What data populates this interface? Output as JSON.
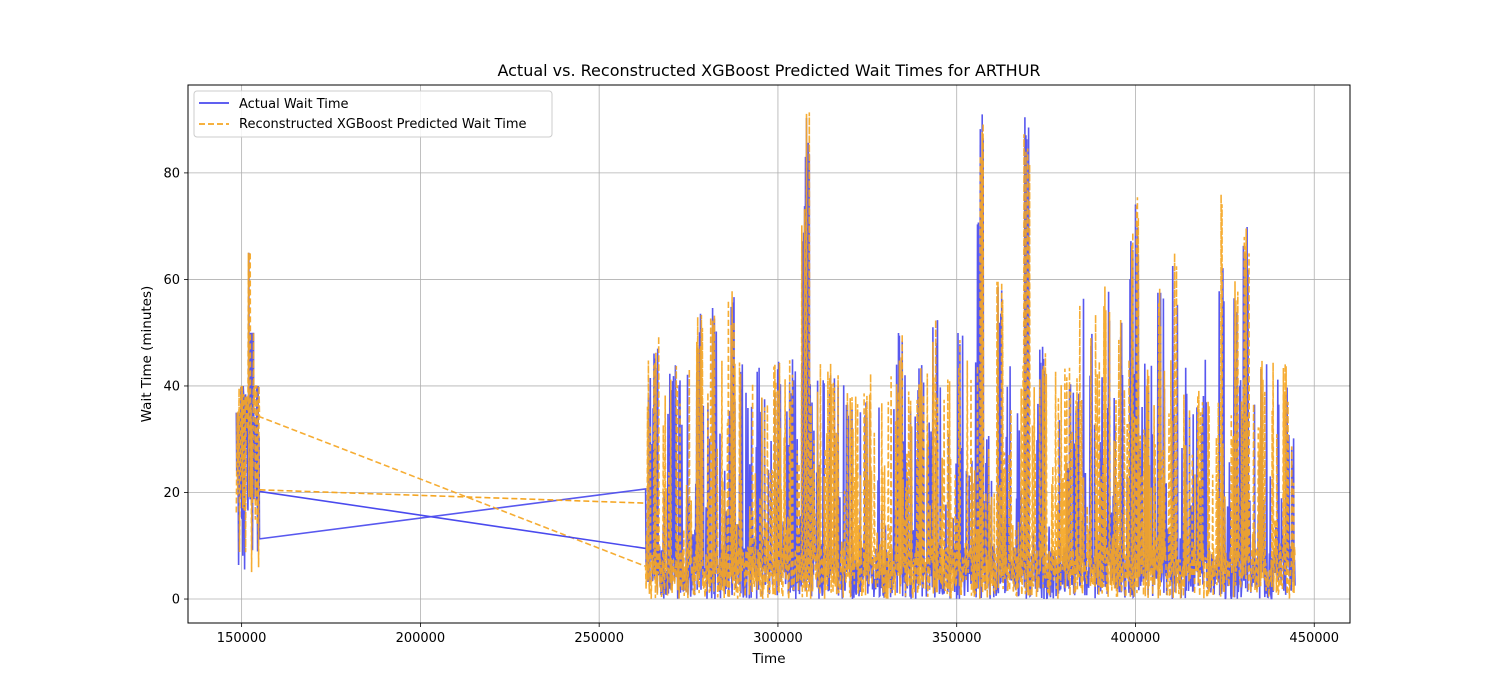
{
  "chart_data": {
    "type": "line",
    "title": "Actual vs. Reconstructed XGBoost Predicted Wait Times for ARTHUR",
    "xlabel": "Time",
    "ylabel": "Wait Time (minutes)",
    "xlim": [
      135000,
      460000
    ],
    "ylim": [
      -4.5,
      96.5
    ],
    "xticks": [
      150000,
      200000,
      250000,
      300000,
      350000,
      400000,
      450000
    ],
    "yticks": [
      0,
      20,
      40,
      60,
      80
    ],
    "grid": true,
    "legend_position": "upper-left",
    "series": [
      {
        "name": "Actual Wait Time",
        "color": "#4a4aee",
        "style": "solid",
        "peaks": [
          [
            149000,
            35
          ],
          [
            150000,
            40
          ],
          [
            151000,
            38
          ],
          [
            152000,
            65
          ],
          [
            153000,
            50
          ],
          [
            154000,
            40
          ],
          [
            266000,
            50
          ],
          [
            271000,
            45
          ],
          [
            278000,
            55
          ],
          [
            282000,
            55
          ],
          [
            287000,
            60
          ],
          [
            290000,
            45
          ],
          [
            296000,
            40
          ],
          [
            300000,
            45
          ],
          [
            304000,
            45
          ],
          [
            307500,
            75
          ],
          [
            308000,
            91
          ],
          [
            315000,
            45
          ],
          [
            320000,
            40
          ],
          [
            325000,
            40
          ],
          [
            334000,
            50
          ],
          [
            340000,
            45
          ],
          [
            344000,
            55
          ],
          [
            351000,
            50
          ],
          [
            356500,
            80
          ],
          [
            357000,
            91
          ],
          [
            362000,
            60
          ],
          [
            369500,
            91
          ],
          [
            374000,
            50
          ],
          [
            381000,
            45
          ],
          [
            385000,
            60
          ],
          [
            388000,
            55
          ],
          [
            392000,
            60
          ],
          [
            396000,
            55
          ],
          [
            399000,
            70
          ],
          [
            400000,
            76
          ],
          [
            403000,
            45
          ],
          [
            407000,
            60
          ],
          [
            411000,
            65
          ],
          [
            418000,
            40
          ],
          [
            424000,
            65
          ],
          [
            428000,
            60
          ],
          [
            431000,
            70
          ],
          [
            436000,
            45
          ],
          [
            442000,
            45
          ]
        ]
      },
      {
        "name": "Reconstructed XGBoost Predicted Wait Time",
        "color": "#f5a623",
        "style": "dashed",
        "peaks": [
          [
            149000,
            35
          ],
          [
            150000,
            40
          ],
          [
            151000,
            38
          ],
          [
            152000,
            65
          ],
          [
            153000,
            50
          ],
          [
            154000,
            40
          ],
          [
            266000,
            50
          ],
          [
            271000,
            45
          ],
          [
            278000,
            55
          ],
          [
            282000,
            55
          ],
          [
            287000,
            60
          ],
          [
            290000,
            45
          ],
          [
            296000,
            40
          ],
          [
            300000,
            45
          ],
          [
            304000,
            45
          ],
          [
            307500,
            75
          ],
          [
            308000,
            92
          ],
          [
            315000,
            45
          ],
          [
            320000,
            40
          ],
          [
            325000,
            40
          ],
          [
            334000,
            50
          ],
          [
            340000,
            45
          ],
          [
            344000,
            55
          ],
          [
            351000,
            50
          ],
          [
            356500,
            80
          ],
          [
            357000,
            91
          ],
          [
            362000,
            60
          ],
          [
            369500,
            91
          ],
          [
            374000,
            50
          ],
          [
            381000,
            45
          ],
          [
            385000,
            60
          ],
          [
            388000,
            55
          ],
          [
            392000,
            60
          ],
          [
            396000,
            55
          ],
          [
            399000,
            70
          ],
          [
            400000,
            76
          ],
          [
            403000,
            45
          ],
          [
            407000,
            60
          ],
          [
            411000,
            65
          ],
          [
            418000,
            40
          ],
          [
            424000,
            77
          ],
          [
            428000,
            60
          ],
          [
            431000,
            70
          ],
          [
            436000,
            45
          ],
          [
            442000,
            45
          ]
        ]
      }
    ],
    "gap_segments": [
      {
        "series": "Actual Wait Time",
        "from": [
          155000,
          20.2
        ],
        "to": [
          263000,
          9.5
        ]
      },
      {
        "series": "Reconstructed XGBoost Predicted Wait Time",
        "from": [
          155000,
          20.5
        ],
        "to": [
          263000,
          18
        ]
      }
    ]
  }
}
